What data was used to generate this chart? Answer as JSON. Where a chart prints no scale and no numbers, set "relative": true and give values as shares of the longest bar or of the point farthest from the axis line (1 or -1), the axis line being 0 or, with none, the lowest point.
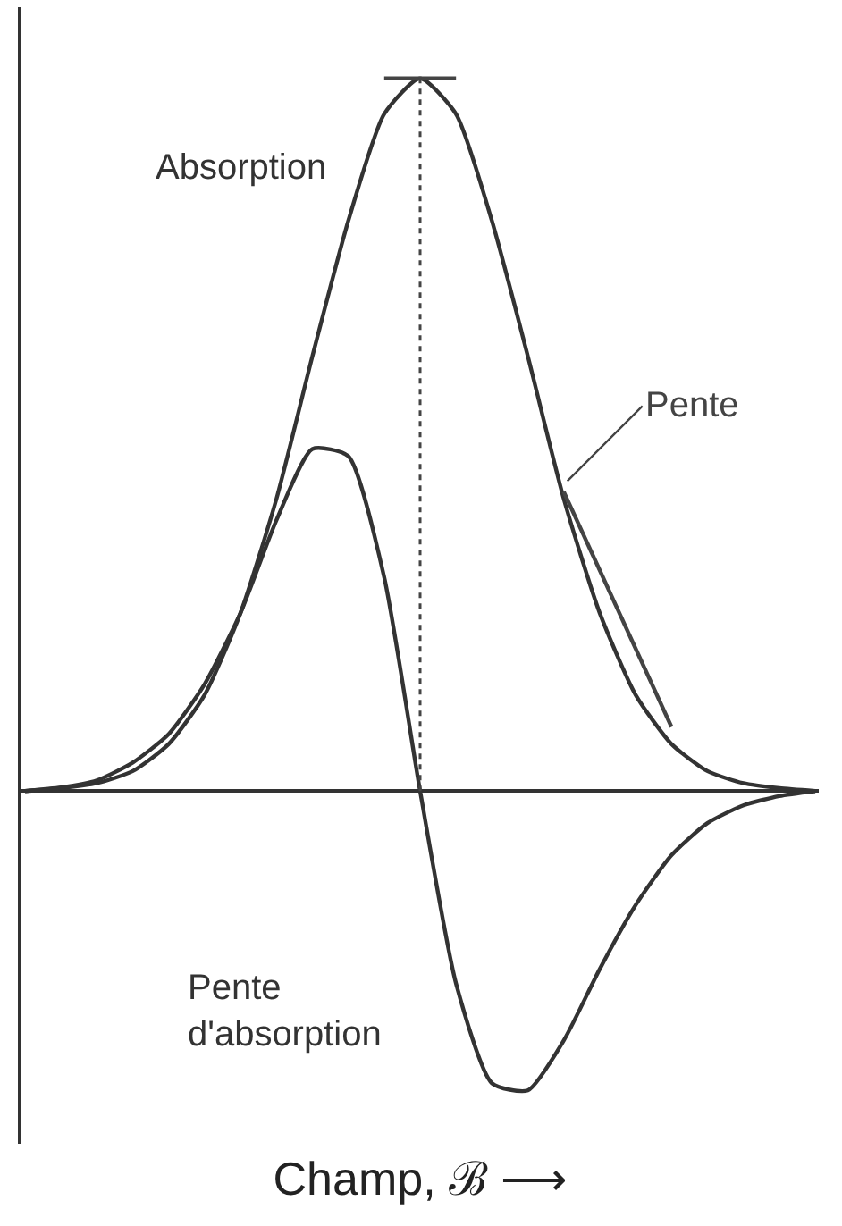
{
  "chart_data": {
    "type": "line",
    "relative": true,
    "xlabel": "Champ, ℬ ⟶",
    "legend": false,
    "marker": "none",
    "line_style": "solid",
    "categories": [
      null,
      null,
      null,
      null,
      null,
      null,
      null,
      null,
      null,
      null,
      null,
      null,
      null,
      null,
      null,
      null,
      null,
      null,
      null,
      null,
      null,
      null,
      null
    ],
    "series": [
      {
        "name": "Absorption",
        "color": "#333333",
        "values": [
          0,
          0.004,
          0.011,
          0.028,
          0.066,
          0.135,
          0.25,
          0.41,
          0.61,
          0.8,
          0.95,
          1,
          0.95,
          0.8,
          0.61,
          0.41,
          0.25,
          0.135,
          0.066,
          0.028,
          0.011,
          0.004,
          0
        ]
      },
      {
        "name": "Pente d'absorption",
        "color": "#333333",
        "values": [
          0,
          0.005,
          0.015,
          0.04,
          0.08,
          0.15,
          0.25,
          0.38,
          0.48,
          0.47,
          0.3,
          0,
          -0.27,
          -0.41,
          -0.42,
          -0.35,
          -0.25,
          -0.16,
          -0.09,
          -0.045,
          -0.02,
          -0.007,
          0
        ]
      },
      {
        "name": "Pente",
        "color": "#444444",
        "values": [
          null,
          null,
          null,
          null,
          null,
          null,
          null,
          null,
          null,
          null,
          null,
          null,
          null,
          null,
          null,
          0.42,
          0.31,
          0.2,
          0.09,
          null,
          null,
          null,
          null
        ]
      },
      {
        "color": "#444444",
        "values": [
          null,
          null,
          null,
          null,
          null,
          null,
          null,
          null,
          null,
          null,
          1,
          1,
          1,
          null,
          null,
          null,
          null,
          null,
          null,
          null,
          null,
          null,
          null
        ]
      }
    ]
  }
}
